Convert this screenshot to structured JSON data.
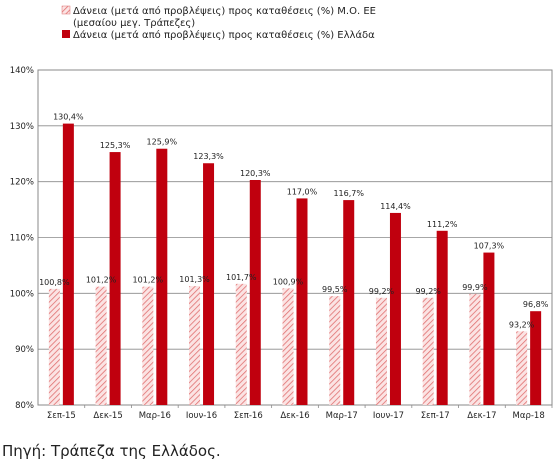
{
  "chart_data": {
    "type": "bar",
    "categories": [
      "Σεπ-15",
      "Δεκ-15",
      "Μαρ-16",
      "Ιουν-16",
      "Σεπ-16",
      "Δεκ-16",
      "Μαρ-17",
      "Ιουν-17",
      "Σεπ-17",
      "Δεκ-17",
      "Μαρ-18"
    ],
    "series": [
      {
        "name": "Δάνεια (μετά από προβλέψεις) προς καταθέσεις (%) Μ.Ο. ΕΕ (μεσαίου μεγ. Τράπεζες)",
        "legend_lines": [
          "Δάνεια (μετά από προβλέψεις) προς καταθέσεις (%) Μ.Ο. ΕΕ",
          "(μεσαίου μεγ. Τράπεζες)"
        ],
        "values": [
          100.8,
          101.2,
          101.2,
          101.3,
          101.7,
          100.9,
          99.5,
          99.2,
          99.2,
          99.9,
          93.2
        ],
        "labels": [
          "100,8%",
          "101,2%",
          "101,2%",
          "101,3%",
          "101,7%",
          "100,9%",
          "99,5%",
          "99,2%",
          "99,2%",
          "99,9%",
          "93,2%"
        ],
        "style": "hatched",
        "color": "#e8a0a0"
      },
      {
        "name": "Δάνεια (μετά από προβλέψεις) προς καταθέσεις (%) Ελλάδα",
        "legend_lines": [
          "Δάνεια (μετά από προβλέψεις) προς καταθέσεις (%) Ελλάδα"
        ],
        "values": [
          130.4,
          125.3,
          125.9,
          123.3,
          120.3,
          117.0,
          116.7,
          114.4,
          111.2,
          107.3,
          96.8
        ],
        "labels": [
          "130,4%",
          "125,3%",
          "125,9%",
          "123,3%",
          "120,3%",
          "117,0%",
          "116,7%",
          "114,4%",
          "111,2%",
          "107,3%",
          "96,8%"
        ],
        "style": "solid",
        "color": "#c0000e"
      }
    ],
    "y_ticks": [
      "140%",
      "130%",
      "120%",
      "110%",
      "100%",
      "90%",
      "80%"
    ],
    "ylim": [
      80,
      140
    ],
    "grid": true,
    "legend_position": "top-left"
  },
  "source_note": "Πηγή: Τράπεζα της Ελλάδος."
}
